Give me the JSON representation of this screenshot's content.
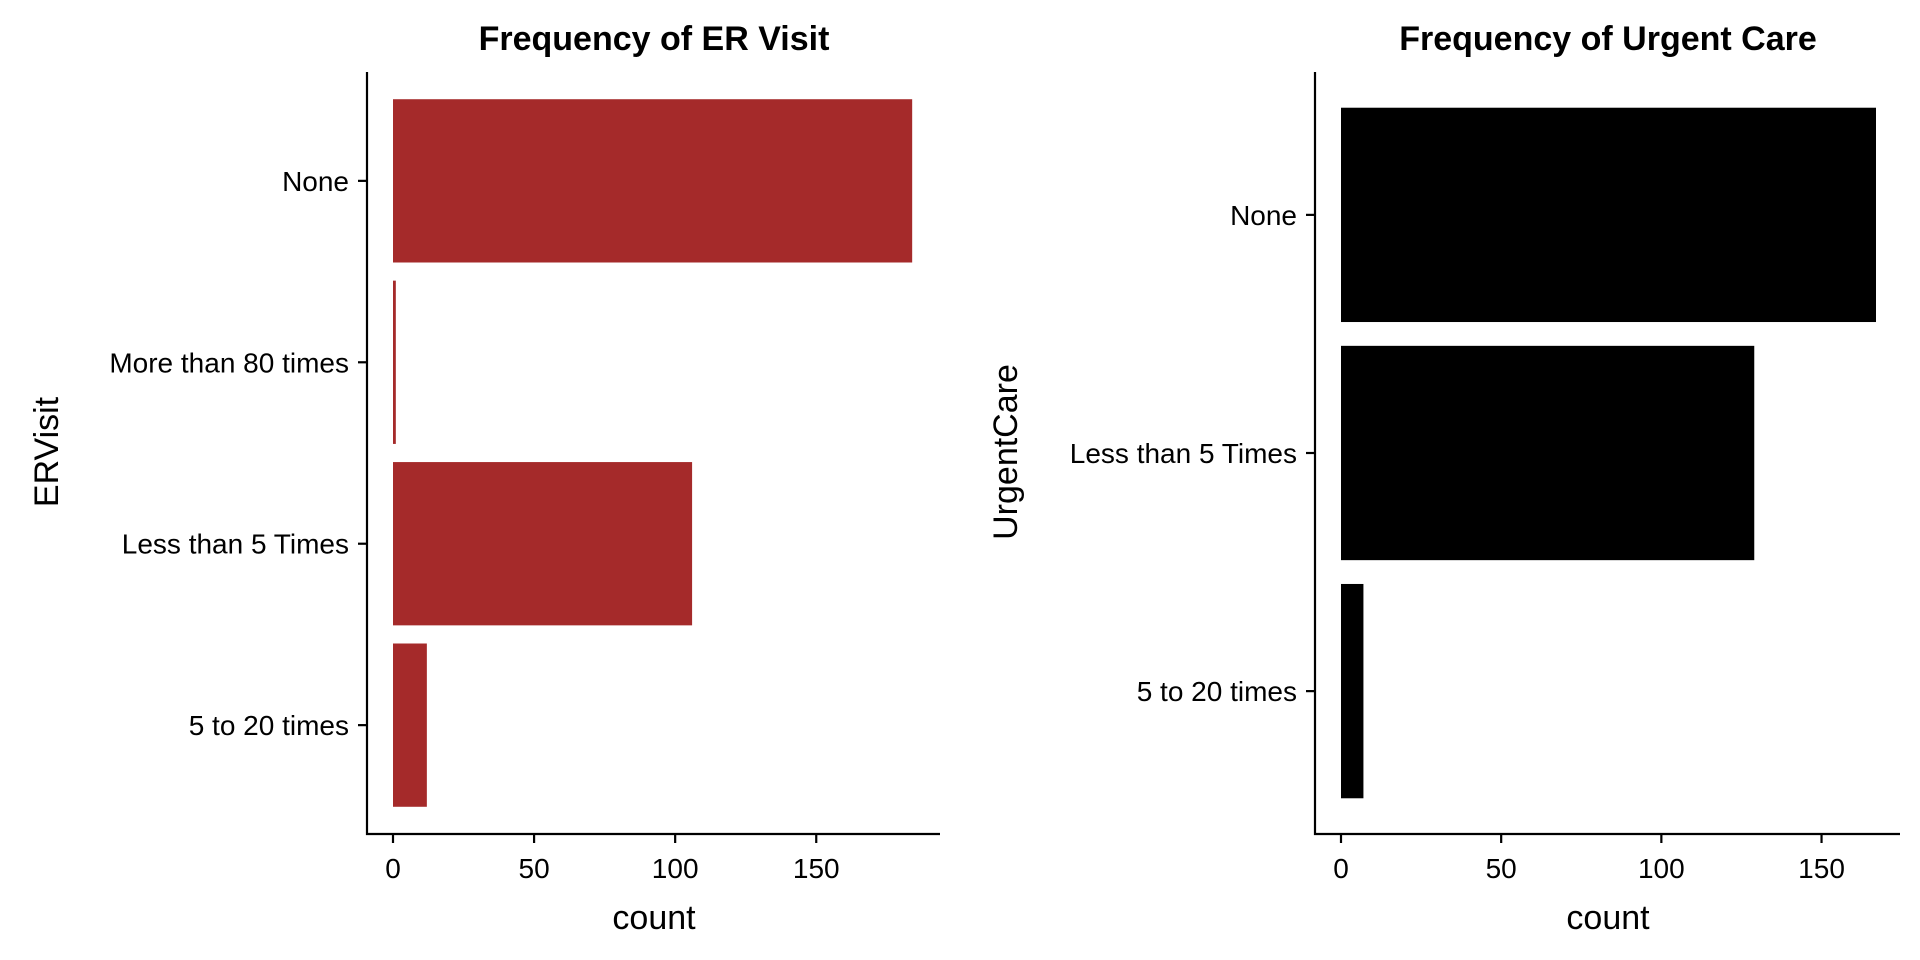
{
  "chart_data": [
    {
      "type": "bar",
      "orientation": "horizontal",
      "title": "Frequency of ER Visit",
      "xlabel": "count",
      "ylabel": "ERVisit",
      "categories": [
        "None",
        "More than 80 times",
        "Less than 5 Times",
        "5 to 20 times"
      ],
      "values": [
        184,
        1,
        106,
        12
      ],
      "xlim": [
        0,
        185
      ],
      "xticks": [
        "0",
        "50",
        "100",
        "150"
      ],
      "bar_color": "#A52A2A",
      "grid": false,
      "legend": "none"
    },
    {
      "type": "bar",
      "orientation": "horizontal",
      "title": "Frequency of Urgent Care",
      "xlabel": "count",
      "ylabel": "UrgentCare",
      "categories": [
        "None",
        "Less than 5 Times",
        "5 to 20 times"
      ],
      "values": [
        167,
        129,
        7
      ],
      "xlim": [
        0,
        167
      ],
      "xticks": [
        "0",
        "50",
        "100",
        "150"
      ],
      "bar_color": "#000000",
      "grid": false,
      "legend": "none"
    }
  ]
}
